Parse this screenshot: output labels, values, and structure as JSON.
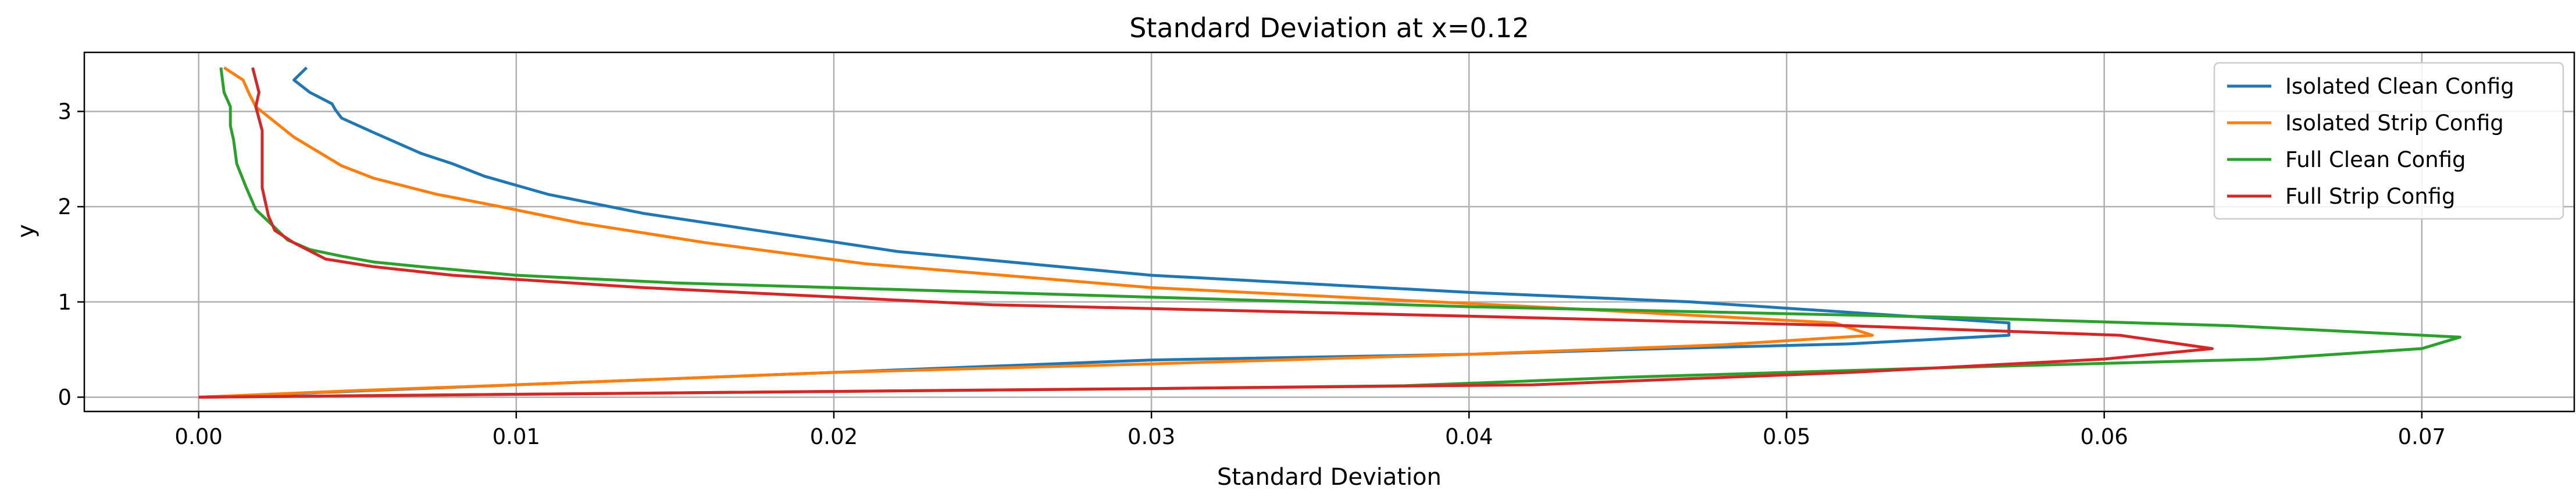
{
  "chart_data": {
    "type": "line",
    "title": "Standard Deviation at x=0.12",
    "xlabel": "Standard Deviation",
    "ylabel": "y",
    "xlim": [
      -0.0036,
      0.0748
    ],
    "ylim": [
      -0.15,
      3.62
    ],
    "xticks": [
      0.0,
      0.01,
      0.02,
      0.03,
      0.04,
      0.05,
      0.06,
      0.07
    ],
    "xtick_labels": [
      "0.00",
      "0.01",
      "0.02",
      "0.03",
      "0.04",
      "0.05",
      "0.06",
      "0.07"
    ],
    "yticks": [
      0,
      1,
      2,
      3
    ],
    "ytick_labels": [
      "0",
      "1",
      "2",
      "3"
    ],
    "grid": true,
    "legend_position": "top-right",
    "series": [
      {
        "name": "Isolated Clean Config",
        "color": "#1f77b4",
        "x": [
          0.0,
          0.01,
          0.02,
          0.03,
          0.04,
          0.045,
          0.052,
          0.057,
          0.057,
          0.047,
          0.04,
          0.03,
          0.022,
          0.018,
          0.014,
          0.011,
          0.009,
          0.008,
          0.007,
          0.0055,
          0.0045,
          0.0043,
          0.0042,
          0.0035,
          0.003,
          0.0034
        ],
        "y": [
          0.0,
          0.13,
          0.26,
          0.39,
          0.45,
          0.5,
          0.56,
          0.65,
          0.78,
          1.0,
          1.1,
          1.28,
          1.53,
          1.73,
          1.93,
          2.13,
          2.32,
          2.45,
          2.56,
          2.78,
          2.93,
          3.02,
          3.08,
          3.2,
          3.33,
          3.46
        ]
      },
      {
        "name": "Isolated Strip Config",
        "color": "#ff7f0e",
        "x": [
          0.0,
          0.005,
          0.01,
          0.02,
          0.03,
          0.04,
          0.048,
          0.0527,
          0.0515,
          0.042,
          0.03,
          0.021,
          0.016,
          0.012,
          0.0095,
          0.0075,
          0.0055,
          0.0045,
          0.003,
          0.0018,
          0.0016,
          0.0014,
          0.0008
        ],
        "y": [
          0.0,
          0.07,
          0.13,
          0.26,
          0.35,
          0.45,
          0.55,
          0.65,
          0.78,
          0.95,
          1.15,
          1.4,
          1.62,
          1.83,
          2.0,
          2.13,
          2.3,
          2.43,
          2.73,
          3.05,
          3.18,
          3.33,
          3.46
        ]
      },
      {
        "name": "Full Clean Config",
        "color": "#2ca02c",
        "x": [
          0.0,
          0.01,
          0.02,
          0.03,
          0.038,
          0.045,
          0.055,
          0.065,
          0.07,
          0.0712,
          0.064,
          0.055,
          0.04,
          0.025,
          0.015,
          0.01,
          0.007,
          0.0055,
          0.0045,
          0.0035,
          0.0028,
          0.0024,
          0.0018,
          0.0015,
          0.0012,
          0.0011,
          0.001,
          0.001,
          0.0008,
          0.0007
        ],
        "y": [
          0.0,
          0.03,
          0.06,
          0.09,
          0.12,
          0.21,
          0.31,
          0.4,
          0.51,
          0.63,
          0.75,
          0.84,
          0.95,
          1.1,
          1.2,
          1.28,
          1.37,
          1.42,
          1.48,
          1.55,
          1.65,
          1.78,
          1.97,
          2.2,
          2.45,
          2.7,
          2.85,
          3.05,
          3.2,
          3.46
        ]
      },
      {
        "name": "Full Strip Config",
        "color": "#d62728",
        "x": [
          0.0,
          0.01,
          0.02,
          0.03,
          0.042,
          0.052,
          0.06,
          0.0634,
          0.0605,
          0.052,
          0.04,
          0.025,
          0.014,
          0.008,
          0.0055,
          0.004,
          0.003,
          0.0024,
          0.0022,
          0.002,
          0.002,
          0.002,
          0.0018,
          0.0019,
          0.0017
        ],
        "y": [
          0.0,
          0.03,
          0.06,
          0.09,
          0.13,
          0.26,
          0.4,
          0.51,
          0.65,
          0.75,
          0.85,
          0.97,
          1.15,
          1.28,
          1.37,
          1.45,
          1.62,
          1.75,
          1.9,
          2.2,
          2.45,
          2.8,
          3.05,
          3.2,
          3.46
        ]
      }
    ]
  }
}
